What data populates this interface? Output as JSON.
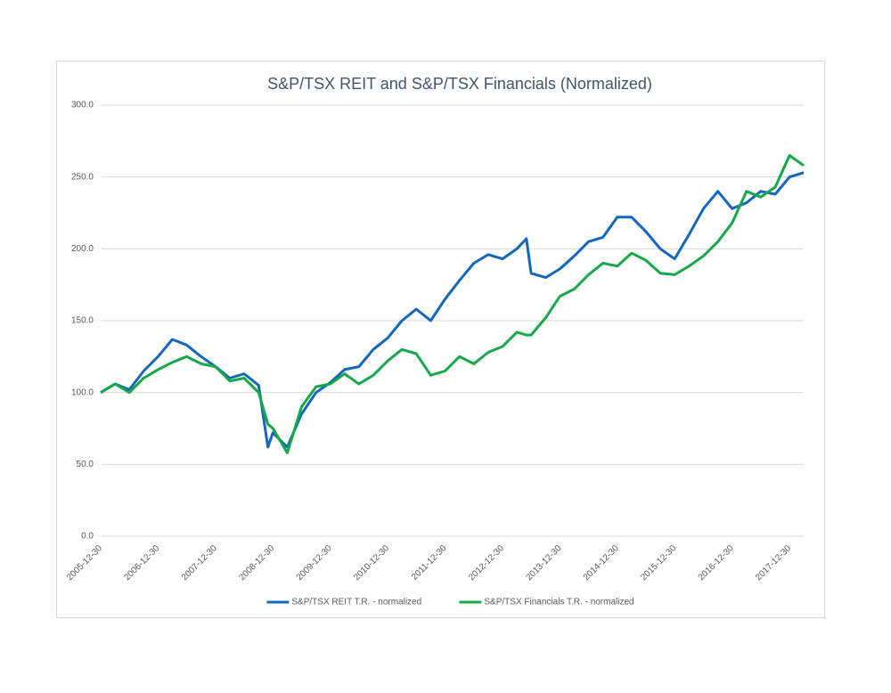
{
  "chart_data": {
    "type": "line",
    "title": "S&P/TSX REIT and S&P/TSX Financials (Normalized)",
    "x": [
      "2005-12-30",
      "2006-03-31",
      "2006-06-30",
      "2006-09-30",
      "2006-12-30",
      "2007-03-31",
      "2007-06-30",
      "2007-09-30",
      "2007-12-30",
      "2008-03-31",
      "2008-06-30",
      "2008-09-30",
      "2008-11-28",
      "2008-12-30",
      "2009-03-31",
      "2009-06-30",
      "2009-09-30",
      "2009-12-30",
      "2010-03-31",
      "2010-06-30",
      "2010-09-30",
      "2010-12-30",
      "2011-03-31",
      "2011-06-30",
      "2011-09-30",
      "2011-12-30",
      "2012-03-31",
      "2012-06-30",
      "2012-09-30",
      "2012-12-30",
      "2013-03-31",
      "2013-05-31",
      "2013-06-30",
      "2013-09-30",
      "2013-12-30",
      "2014-03-31",
      "2014-06-30",
      "2014-09-30",
      "2014-12-30",
      "2015-03-31",
      "2015-06-30",
      "2015-09-30",
      "2015-12-30",
      "2016-03-31",
      "2016-06-30",
      "2016-09-30",
      "2016-12-30",
      "2017-03-31",
      "2017-06-30",
      "2017-09-30",
      "2017-12-30",
      "2018-03-30"
    ],
    "series": [
      {
        "name": "S&P/TSX REIT T.R. - normalized",
        "color": "#1467bb",
        "values": [
          100,
          106,
          102,
          115,
          125,
          137,
          133,
          125,
          118,
          110,
          113,
          105,
          62,
          72,
          62,
          85,
          100,
          107,
          116,
          118,
          130,
          138,
          150,
          158,
          150,
          165,
          178,
          190,
          196,
          193,
          200,
          207,
          183,
          180,
          186,
          195,
          205,
          208,
          222,
          222,
          212,
          200,
          193,
          210,
          228,
          240,
          228,
          232,
          240,
          238,
          250,
          253
        ]
      },
      {
        "name": "S&P/TSX Financials T.R. - normalized",
        "color": "#16a84a",
        "values": [
          100,
          106,
          100,
          110,
          116,
          121,
          125,
          120,
          118,
          108,
          110,
          100,
          78,
          75,
          58,
          90,
          104,
          106,
          113,
          106,
          112,
          122,
          130,
          127,
          112,
          115,
          125,
          120,
          128,
          132,
          142,
          140,
          140,
          152,
          167,
          172,
          182,
          190,
          188,
          197,
          192,
          183,
          182,
          188,
          195,
          205,
          218,
          240,
          236,
          243,
          265,
          258
        ]
      }
    ],
    "xlim": [
      "2005-12-30",
      "2018-03-30"
    ],
    "xticks": [
      "2005-12-30",
      "2006-12-30",
      "2007-12-30",
      "2008-12-30",
      "2009-12-30",
      "2010-12-30",
      "2011-12-30",
      "2012-12-30",
      "2013-12-30",
      "2014-12-30",
      "2015-12-30",
      "2016-12-30",
      "2017-12-30"
    ],
    "ylim": [
      0,
      300
    ],
    "yticks": [
      {
        "value": 0,
        "label": "0.0"
      },
      {
        "value": 50,
        "label": "50.0"
      },
      {
        "value": 100,
        "label": "100.0"
      },
      {
        "value": 150,
        "label": "150.0"
      },
      {
        "value": 200,
        "label": "200.0"
      },
      {
        "value": 250,
        "label": "250.0"
      },
      {
        "value": 300,
        "label": "300.0"
      }
    ],
    "grid": true,
    "legend": "bottom"
  }
}
